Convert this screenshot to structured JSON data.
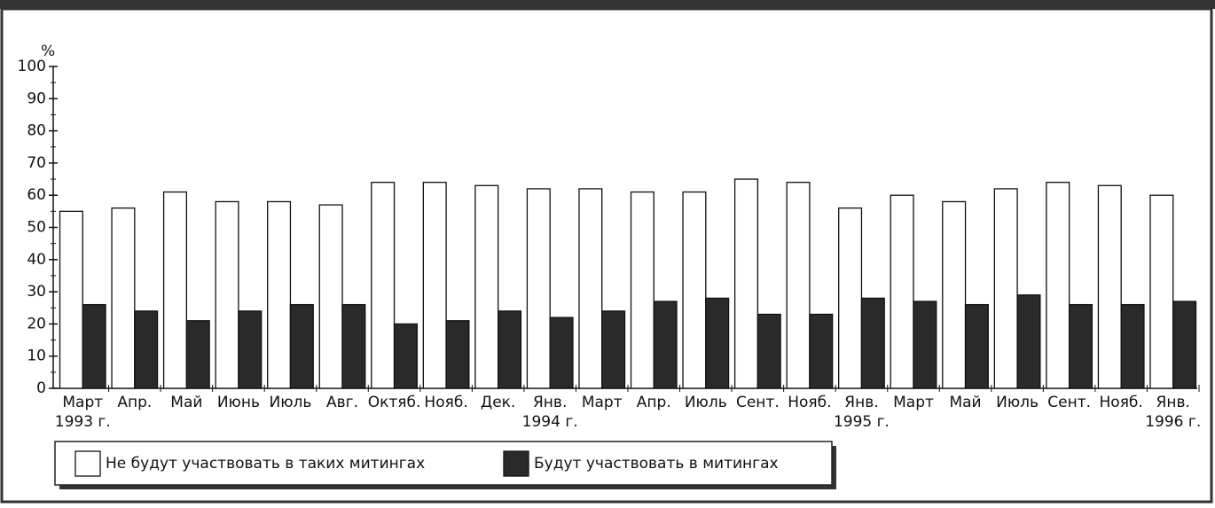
{
  "chart_data": {
    "type": "bar",
    "y_label": "%",
    "categories": [
      [
        "Март",
        "1993 г."
      ],
      [
        "Апр."
      ],
      [
        "Май"
      ],
      [
        "Июнь"
      ],
      [
        "Июль"
      ],
      [
        "Авг."
      ],
      [
        "Октяб."
      ],
      [
        "Нояб."
      ],
      [
        "Дек."
      ],
      [
        "Янв.",
        "1994 г."
      ],
      [
        "Март"
      ],
      [
        "Апр."
      ],
      [
        "Июль"
      ],
      [
        "Сент."
      ],
      [
        "Нояб."
      ],
      [
        "Янв.",
        "1995 г."
      ],
      [
        "Март"
      ],
      [
        "Май"
      ],
      [
        "Июль"
      ],
      [
        "Сент."
      ],
      [
        "Нояб."
      ],
      [
        "Янв.",
        "1996 г."
      ]
    ],
    "series": [
      {
        "name": "Не будут участвовать в таких митингах",
        "color": "#ffffff",
        "values": [
          55,
          56,
          61,
          58,
          58,
          57,
          64,
          64,
          63,
          62,
          62,
          61,
          61,
          65,
          64,
          56,
          60,
          58,
          62,
          64,
          63,
          60
        ]
      },
      {
        "name": "Будут участвовать в митингах",
        "color": "#2a2a2a",
        "values": [
          26,
          24,
          21,
          24,
          26,
          26,
          20,
          21,
          24,
          22,
          24,
          27,
          28,
          23,
          23,
          28,
          27,
          26,
          29,
          26,
          26,
          27
        ]
      }
    ],
    "ylim": [
      0,
      100
    ],
    "yticks": [
      0,
      10,
      20,
      30,
      40,
      50,
      60,
      70,
      80,
      90,
      100
    ],
    "grid": false
  }
}
